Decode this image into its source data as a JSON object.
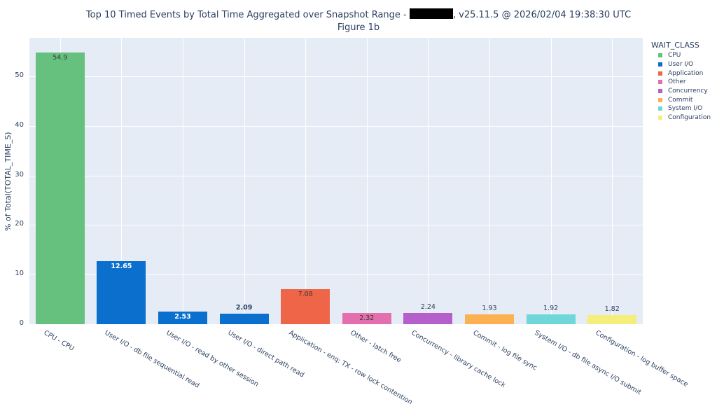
{
  "chart_data": {
    "type": "bar",
    "title": "Top 10 Timed Events by Total Time Aggregated over Snapshot Range - [REDACTED], v25.11.5 @ 2026/02/04 19:38:30 UTC",
    "title_prefix": "Top 10 Timed Events by Total Time Aggregated over Snapshot Range - ",
    "title_suffix": ", v25.11.5 @ 2026/02/04 19:38:30 UTC",
    "subtitle": "Figure 1b",
    "xlabel": "",
    "ylabel": "% of Total(TOTAL_TIME_S)",
    "ylim": [
      0,
      57.8
    ],
    "yticks": [
      0,
      10,
      20,
      30,
      40,
      50
    ],
    "grid": true,
    "legend_position": "right",
    "legend_title": "WAIT_CLASS",
    "categories": [
      "CPU - CPU",
      "User I/O - db file sequential read",
      "User I/O - read by other session",
      "User I/O - direct path read",
      "Application - enq: TX - row lock contention",
      "Other - latch free",
      "Concurrency - library cache lock",
      "Commit - log file sync",
      "System I/O - db file async I/O submit",
      "Configuration - log buffer space"
    ],
    "values": [
      54.9,
      12.65,
      2.53,
      2.09,
      7.08,
      2.32,
      2.24,
      1.93,
      1.92,
      1.82
    ],
    "value_labels": [
      "54.9",
      "12.65",
      "2.53",
      "2.09",
      "7.08",
      "2.32",
      "2.24",
      "1.93",
      "1.92",
      "1.82"
    ],
    "wait_class": [
      "CPU",
      "User I/O",
      "User I/O",
      "User I/O",
      "Application",
      "Other",
      "Concurrency",
      "Commit",
      "System I/O",
      "Configuration"
    ],
    "series": [
      {
        "name": "CPU",
        "color": "#66c17f"
      },
      {
        "name": "User I/O",
        "color": "#0b6fce"
      },
      {
        "name": "Application",
        "color": "#ef6548"
      },
      {
        "name": "Other",
        "color": "#e36fae"
      },
      {
        "name": "Concurrency",
        "color": "#b55fca"
      },
      {
        "name": "Commit",
        "color": "#fbb052"
      },
      {
        "name": "System I/O",
        "color": "#6fd7d8"
      },
      {
        "name": "Configuration",
        "color": "#f4ee7a"
      }
    ]
  }
}
